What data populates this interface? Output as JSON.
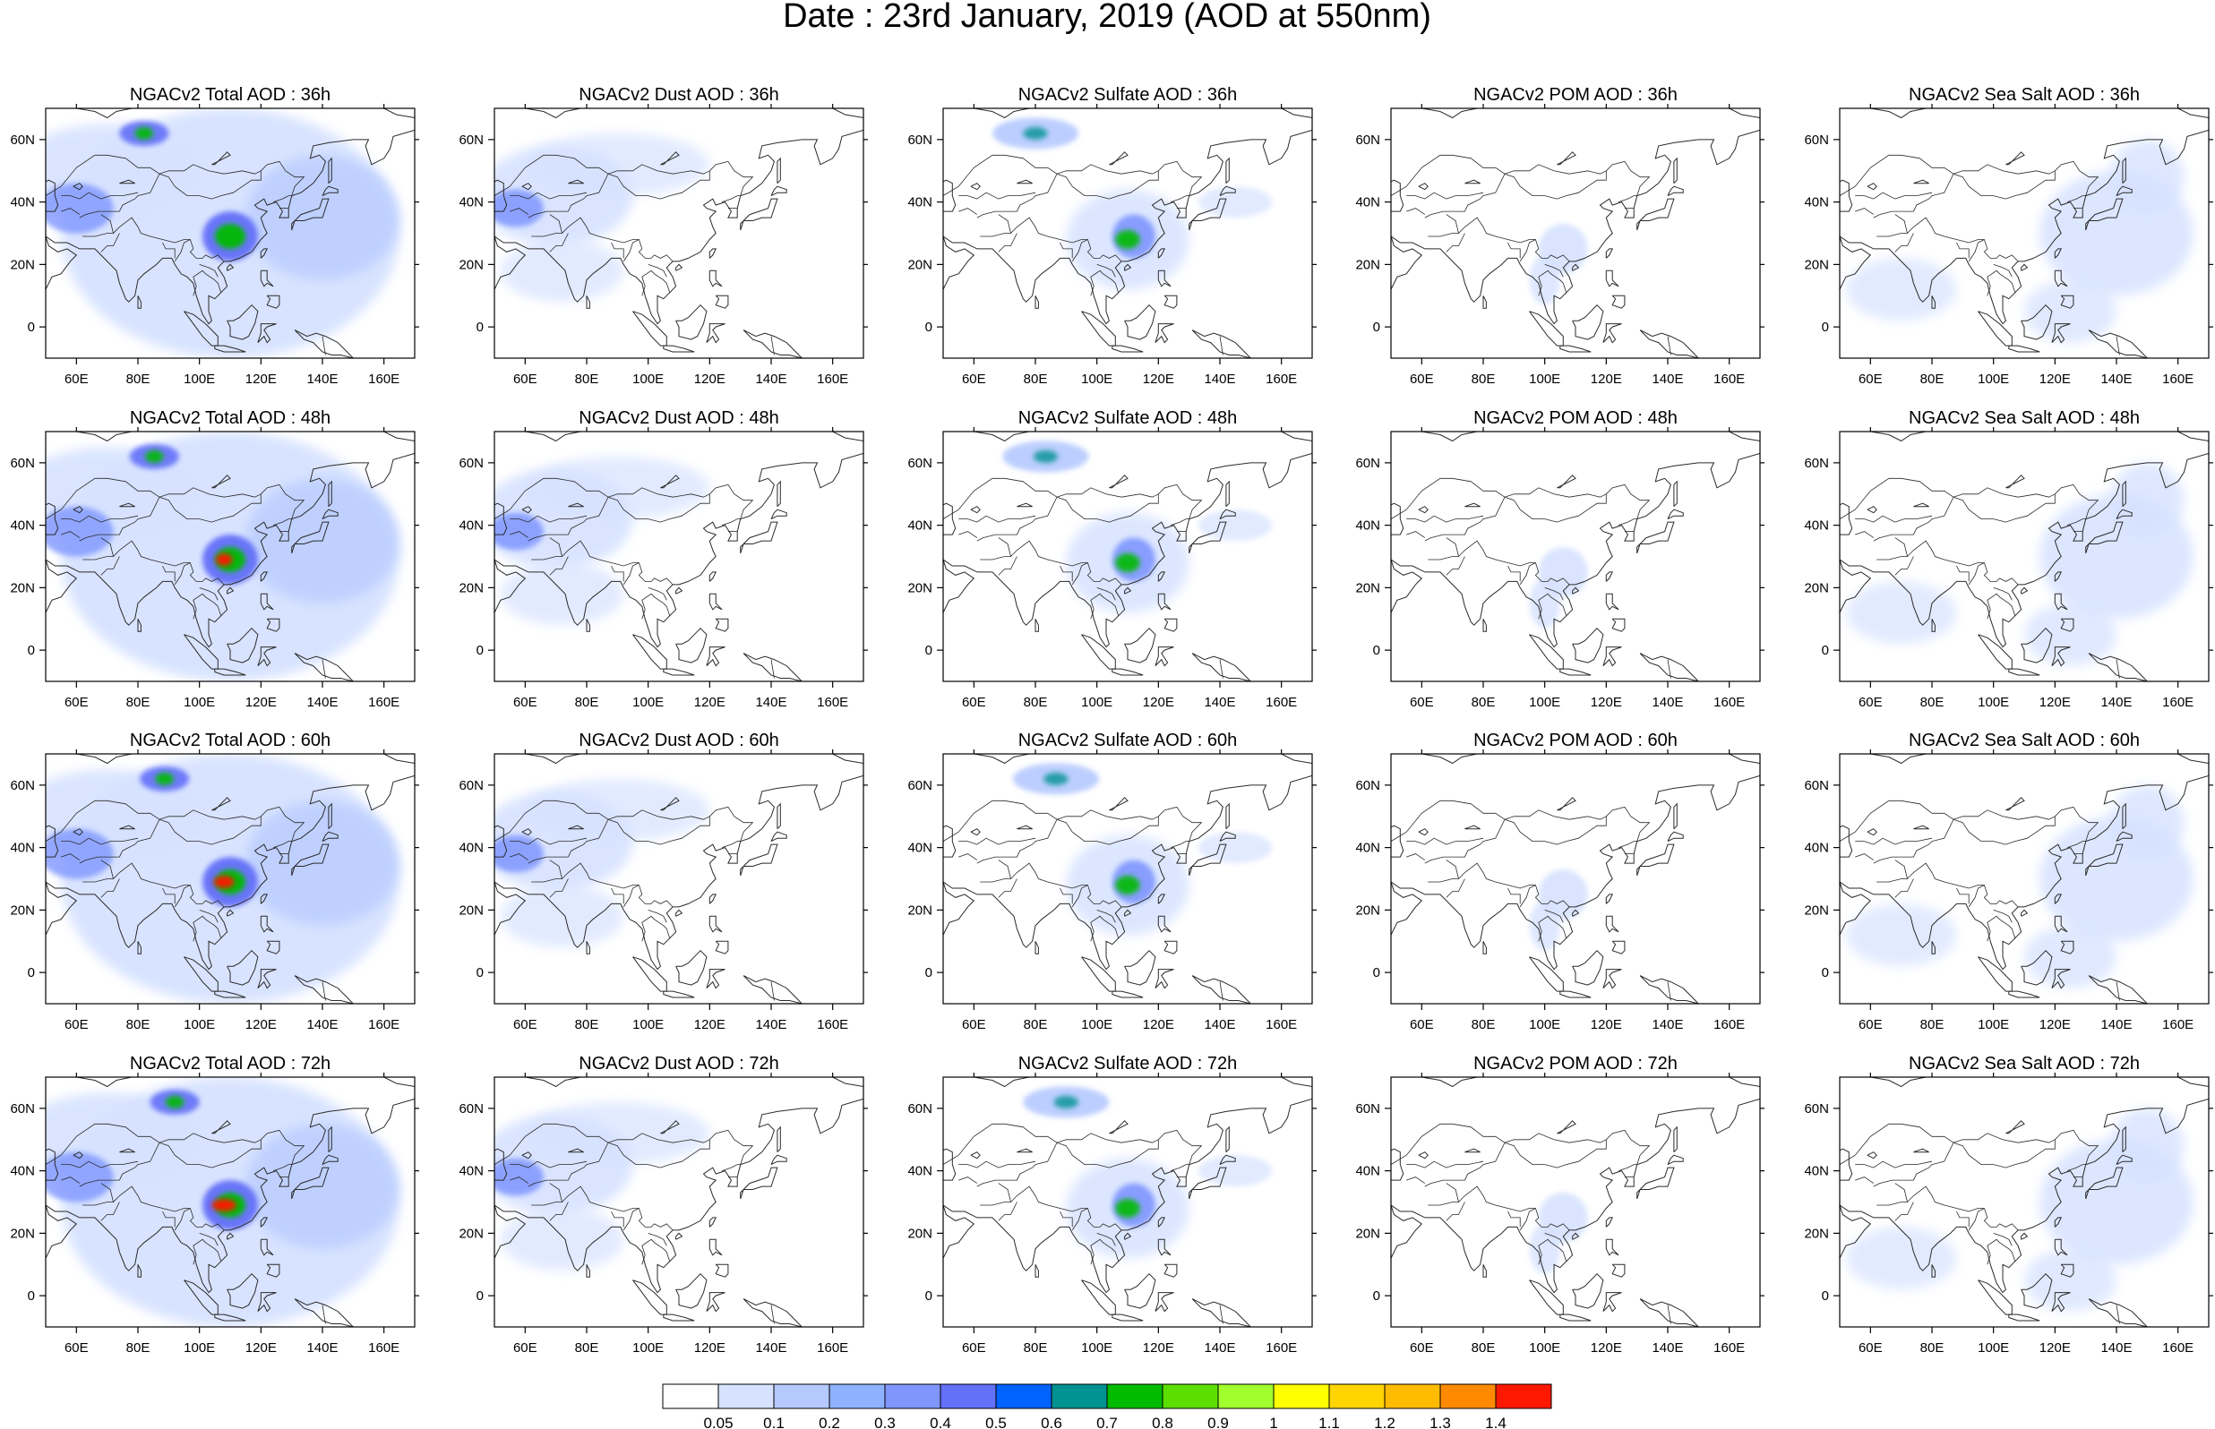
{
  "title": "Date : 23rd January, 2019 (AOD at 550nm)",
  "colors": {
    "land_outline": "#2a2a2a",
    "frame": "#000000",
    "background": "#ffffff"
  },
  "panels": [
    {
      "row": 0,
      "col": 0,
      "title": "NGACv2 Total AOD : 36h",
      "species": "total",
      "hour": 36
    },
    {
      "row": 0,
      "col": 1,
      "title": "NGACv2 Dust AOD : 36h",
      "species": "dust",
      "hour": 36
    },
    {
      "row": 0,
      "col": 2,
      "title": "NGACv2 Sulfate AOD : 36h",
      "species": "sulfate",
      "hour": 36
    },
    {
      "row": 0,
      "col": 3,
      "title": "NGACv2 POM AOD : 36h",
      "species": "pom",
      "hour": 36
    },
    {
      "row": 0,
      "col": 4,
      "title": "NGACv2 Sea Salt AOD : 36h",
      "species": "seasalt",
      "hour": 36
    },
    {
      "row": 1,
      "col": 0,
      "title": "NGACv2 Total AOD : 48h",
      "species": "total",
      "hour": 48
    },
    {
      "row": 1,
      "col": 1,
      "title": "NGACv2 Dust AOD : 48h",
      "species": "dust",
      "hour": 48
    },
    {
      "row": 1,
      "col": 2,
      "title": "NGACv2 Sulfate AOD : 48h",
      "species": "sulfate",
      "hour": 48
    },
    {
      "row": 1,
      "col": 3,
      "title": "NGACv2 POM AOD : 48h",
      "species": "pom",
      "hour": 48
    },
    {
      "row": 1,
      "col": 4,
      "title": "NGACv2 Sea Salt AOD : 48h",
      "species": "seasalt",
      "hour": 48
    },
    {
      "row": 2,
      "col": 0,
      "title": "NGACv2 Total AOD : 60h",
      "species": "total",
      "hour": 60
    },
    {
      "row": 2,
      "col": 1,
      "title": "NGACv2 Dust AOD : 60h",
      "species": "dust",
      "hour": 60
    },
    {
      "row": 2,
      "col": 2,
      "title": "NGACv2 Sulfate AOD : 60h",
      "species": "sulfate",
      "hour": 60
    },
    {
      "row": 2,
      "col": 3,
      "title": "NGACv2 POM AOD : 60h",
      "species": "pom",
      "hour": 60
    },
    {
      "row": 2,
      "col": 4,
      "title": "NGACv2 Sea Salt AOD : 60h",
      "species": "seasalt",
      "hour": 60
    },
    {
      "row": 3,
      "col": 0,
      "title": "NGACv2 Total AOD : 72h",
      "species": "total",
      "hour": 72
    },
    {
      "row": 3,
      "col": 1,
      "title": "NGACv2 Dust AOD : 72h",
      "species": "dust",
      "hour": 72
    },
    {
      "row": 3,
      "col": 2,
      "title": "NGACv2 Sulfate AOD : 72h",
      "species": "sulfate",
      "hour": 72
    },
    {
      "row": 3,
      "col": 3,
      "title": "NGACv2 POM AOD : 72h",
      "species": "pom",
      "hour": 72
    },
    {
      "row": 3,
      "col": 4,
      "title": "NGACv2 Sea Salt  AOD : 72h",
      "species": "seasalt",
      "hour": 72
    }
  ],
  "map": {
    "lon_range": [
      50,
      170
    ],
    "lat_range": [
      -10,
      70
    ],
    "lon_ticks": [
      "60E",
      "80E",
      "100E",
      "120E",
      "140E",
      "160E"
    ],
    "lon_tick_values": [
      60,
      80,
      100,
      120,
      140,
      160
    ],
    "lat_ticks": [
      "60N",
      "40N",
      "20N",
      "0"
    ],
    "lat_tick_values": [
      60,
      40,
      20,
      0
    ]
  },
  "colorbar": {
    "labels": [
      "0.05",
      "0.1",
      "0.2",
      "0.3",
      "0.4",
      "0.5",
      "0.6",
      "0.7",
      "0.8",
      "0.9",
      "1",
      "1.1",
      "1.2",
      "1.3",
      "1.4"
    ],
    "colors": [
      "#ffffff",
      "#d6e2ff",
      "#b5c9ff",
      "#8eb2ff",
      "#7f96ff",
      "#6370f8",
      "#0062ff",
      "#009191",
      "#00bb00",
      "#5cdf00",
      "#a0ff2c",
      "#ffff00",
      "#ffd400",
      "#ffbb00",
      "#ff8a00",
      "#ff1800"
    ]
  }
}
